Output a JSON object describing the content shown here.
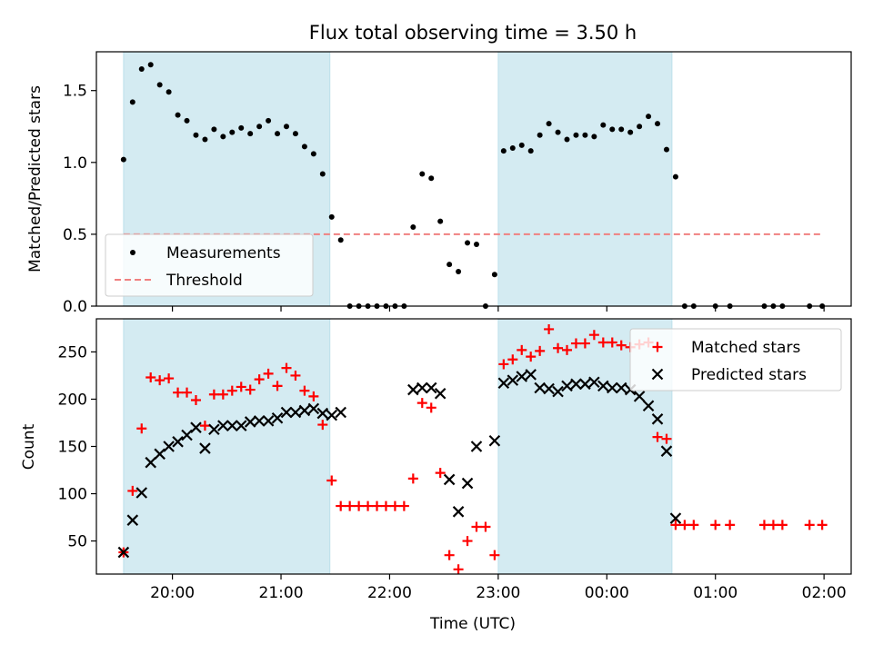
{
  "chart_data": [
    {
      "type": "scatter",
      "title": "Flux total observing time = 3.50 h",
      "xlabel": "",
      "ylabel": "Matched/Predicted stars",
      "xlim": [
        "19:18",
        "02:15"
      ],
      "ylim": [
        0,
        1.77
      ],
      "x_ticks": [
        "20:00",
        "21:00",
        "22:00",
        "23:00",
        "00:00",
        "01:00",
        "02:00"
      ],
      "y_ticks": [
        "0.0",
        "0.5",
        "1.0",
        "1.5"
      ],
      "shaded_intervals": [
        [
          "19:33",
          "21:27"
        ],
        [
          "23:00",
          "00:36"
        ]
      ],
      "legend": {
        "position": "lower-left",
        "entries": [
          "Measurements",
          "Threshold"
        ]
      },
      "series": [
        {
          "name": "Measurements",
          "marker": "dot",
          "color": "#000000",
          "x": [
            "19:33",
            "19:38",
            "19:43",
            "19:48",
            "19:53",
            "19:58",
            "20:03",
            "20:08",
            "20:13",
            "20:18",
            "20:23",
            "20:28",
            "20:33",
            "20:38",
            "20:43",
            "20:48",
            "20:53",
            "20:58",
            "21:03",
            "21:08",
            "21:13",
            "21:18",
            "21:23",
            "21:28",
            "21:33",
            "21:38",
            "21:43",
            "21:48",
            "21:53",
            "21:58",
            "22:03",
            "22:08",
            "22:13",
            "22:18",
            "22:23",
            "22:28",
            "22:33",
            "22:38",
            "22:43",
            "22:48",
            "22:53",
            "22:58",
            "23:03",
            "23:08",
            "23:13",
            "23:18",
            "23:23",
            "23:28",
            "23:33",
            "23:38",
            "23:43",
            "23:48",
            "23:53",
            "23:58",
            "00:03",
            "00:08",
            "00:13",
            "00:18",
            "00:23",
            "00:28",
            "00:33",
            "00:38",
            "00:43",
            "00:48",
            "01:00",
            "01:08",
            "01:27",
            "01:32",
            "01:37",
            "01:52",
            "01:59"
          ],
          "y": [
            1.02,
            1.42,
            1.65,
            1.68,
            1.54,
            1.49,
            1.33,
            1.29,
            1.19,
            1.16,
            1.23,
            1.18,
            1.21,
            1.24,
            1.2,
            1.25,
            1.29,
            1.2,
            1.25,
            1.2,
            1.11,
            1.06,
            0.92,
            0.62,
            0.46,
            0,
            0,
            0,
            0,
            0,
            0,
            0,
            0.55,
            0.92,
            0.89,
            0.59,
            0.29,
            0.24,
            0.44,
            0.43,
            0,
            0.22,
            1.08,
            1.1,
            1.12,
            1.08,
            1.19,
            1.27,
            1.21,
            1.16,
            1.19,
            1.19,
            1.18,
            1.26,
            1.23,
            1.23,
            1.21,
            1.25,
            1.32,
            1.27,
            1.09,
            0.9,
            0,
            0,
            0,
            0,
            0,
            0,
            0,
            0,
            0
          ]
        },
        {
          "name": "Threshold",
          "style": "dashed",
          "color": "#f08080",
          "x": [
            "19:33",
            "01:59"
          ],
          "y": [
            0.5,
            0.5
          ]
        }
      ]
    },
    {
      "type": "scatter",
      "title": "",
      "xlabel": "Time (UTC)",
      "ylabel": "Count",
      "xlim": [
        "19:18",
        "02:15"
      ],
      "ylim": [
        15,
        285
      ],
      "x_ticks": [
        "20:00",
        "21:00",
        "22:00",
        "23:00",
        "00:00",
        "01:00",
        "02:00"
      ],
      "y_ticks": [
        "50",
        "100",
        "150",
        "200",
        "250"
      ],
      "shaded_intervals": [
        [
          "19:33",
          "21:27"
        ],
        [
          "23:00",
          "00:36"
        ]
      ],
      "legend": {
        "position": "top-right",
        "entries": [
          "Matched stars",
          "Predicted stars"
        ]
      },
      "series": [
        {
          "name": "Matched stars",
          "marker": "plus",
          "color": "#ff0000",
          "x": [
            "19:33",
            "19:38",
            "19:43",
            "19:48",
            "19:53",
            "19:58",
            "20:03",
            "20:08",
            "20:13",
            "20:18",
            "20:23",
            "20:28",
            "20:33",
            "20:38",
            "20:43",
            "20:48",
            "20:53",
            "20:58",
            "21:03",
            "21:08",
            "21:13",
            "21:18",
            "21:23",
            "21:28",
            "21:33",
            "21:38",
            "21:43",
            "21:48",
            "21:53",
            "21:58",
            "22:03",
            "22:08",
            "22:13",
            "22:18",
            "22:23",
            "22:28",
            "22:33",
            "22:38",
            "22:43",
            "22:48",
            "22:53",
            "22:58",
            "23:03",
            "23:08",
            "23:13",
            "23:18",
            "23:23",
            "23:28",
            "23:33",
            "23:38",
            "23:43",
            "23:48",
            "23:53",
            "23:58",
            "00:03",
            "00:08",
            "00:13",
            "00:18",
            "00:23",
            "00:28",
            "00:33",
            "00:38",
            "00:43",
            "00:48",
            "01:00",
            "01:08",
            "01:27",
            "01:32",
            "01:37",
            "01:52",
            "01:59"
          ],
          "y": [
            38,
            103,
            169,
            223,
            220,
            222,
            207,
            207,
            199,
            172,
            205,
            205,
            209,
            213,
            210,
            221,
            227,
            214,
            233,
            225,
            209,
            203,
            173,
            114,
            87,
            87,
            87,
            87,
            87,
            87,
            87,
            87,
            116,
            196,
            191,
            122,
            35,
            20,
            50,
            65,
            65,
            35,
            237,
            242,
            252,
            245,
            251,
            274,
            254,
            252,
            259,
            259,
            268,
            260,
            260,
            257,
            255,
            258,
            260,
            160,
            158,
            67,
            67,
            67,
            67,
            67,
            67,
            67,
            67,
            67,
            67
          ]
        },
        {
          "name": "Predicted stars",
          "marker": "x",
          "color": "#000000",
          "x": [
            "19:33",
            "19:38",
            "19:43",
            "19:48",
            "19:53",
            "19:58",
            "20:03",
            "20:08",
            "20:13",
            "20:18",
            "20:23",
            "20:28",
            "20:33",
            "20:38",
            "20:43",
            "20:48",
            "20:53",
            "20:58",
            "21:03",
            "21:08",
            "21:13",
            "21:18",
            "21:23",
            "21:28",
            "21:33",
            "22:13",
            "22:18",
            "22:23",
            "22:28",
            "22:33",
            "22:38",
            "22:43",
            "22:48",
            "22:58",
            "23:03",
            "23:08",
            "23:13",
            "23:18",
            "23:23",
            "23:28",
            "23:33",
            "23:38",
            "23:43",
            "23:48",
            "23:53",
            "23:58",
            "00:03",
            "00:08",
            "00:13",
            "00:18",
            "00:23",
            "00:28",
            "00:33",
            "00:38"
          ],
          "y": [
            38,
            72,
            101,
            133,
            142,
            150,
            155,
            162,
            170,
            148,
            168,
            172,
            172,
            172,
            176,
            177,
            177,
            180,
            186,
            186,
            188,
            190,
            185,
            183,
            186,
            210,
            212,
            212,
            206,
            115,
            81,
            111,
            150,
            156,
            217,
            220,
            224,
            226,
            212,
            211,
            208,
            214,
            216,
            216,
            218,
            214,
            212,
            212,
            210,
            203,
            193,
            179,
            145,
            74
          ]
        }
      ]
    }
  ]
}
